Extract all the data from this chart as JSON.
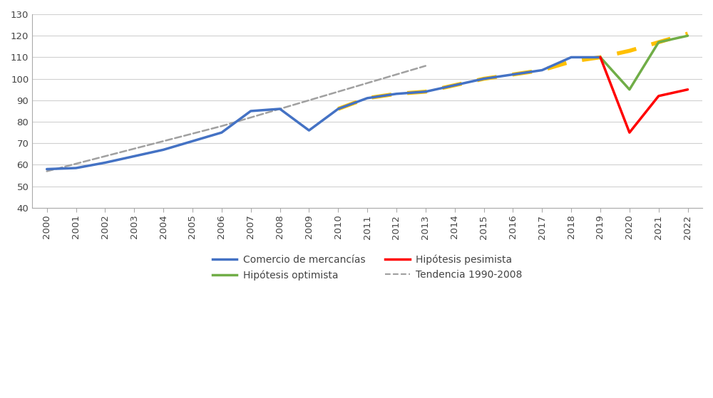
{
  "years_main": [
    2000,
    2001,
    2002,
    2003,
    2004,
    2005,
    2006,
    2007,
    2008,
    2009,
    2010,
    2011,
    2012,
    2013,
    2014,
    2015,
    2016,
    2017,
    2018,
    2019
  ],
  "comercio": [
    58,
    58.5,
    61,
    64,
    67,
    71,
    75,
    85,
    86,
    76,
    86,
    91,
    93,
    94,
    97,
    100,
    102,
    104,
    110,
    110
  ],
  "years_tend": [
    2000,
    2001,
    2002,
    2003,
    2004,
    2005,
    2006,
    2007,
    2008,
    2009,
    2010,
    2011,
    2012,
    2013
  ],
  "tendencia": [
    57,
    60.5,
    64,
    67.5,
    71,
    74.5,
    78,
    82,
    86,
    90,
    94,
    98,
    102,
    106
  ],
  "years_optimista": [
    2019,
    2020,
    2021,
    2022
  ],
  "optimista": [
    110,
    95,
    117,
    120
  ],
  "years_pesimista": [
    2019,
    2020,
    2021,
    2022
  ],
  "pesimista": [
    110,
    75,
    92,
    95
  ],
  "years_forecast": [
    2010,
    2011,
    2012,
    2013,
    2014,
    2015,
    2016,
    2017,
    2018,
    2019,
    2020,
    2021,
    2022
  ],
  "forecast": [
    86,
    91,
    93,
    94,
    97,
    100,
    102,
    104,
    108,
    110,
    113,
    117,
    121
  ],
  "color_comercio": "#4472C4",
  "color_optimista": "#70AD47",
  "color_pesimista": "#FF0000",
  "color_tendencia": "#A0A0A0",
  "color_forecast": "#FFC000",
  "ylim": [
    40,
    130
  ],
  "yticks": [
    40,
    50,
    60,
    70,
    80,
    90,
    100,
    110,
    120,
    130
  ],
  "background_color": "#FFFFFF",
  "grid_color": "#D0D0D0",
  "legend_comercio": "Comercio de mercancías",
  "legend_optimista": "Hipótesis optimista",
  "legend_pesimista": "Hipótesis pesimista",
  "legend_tendencia": "Tendencia 1990-2008"
}
